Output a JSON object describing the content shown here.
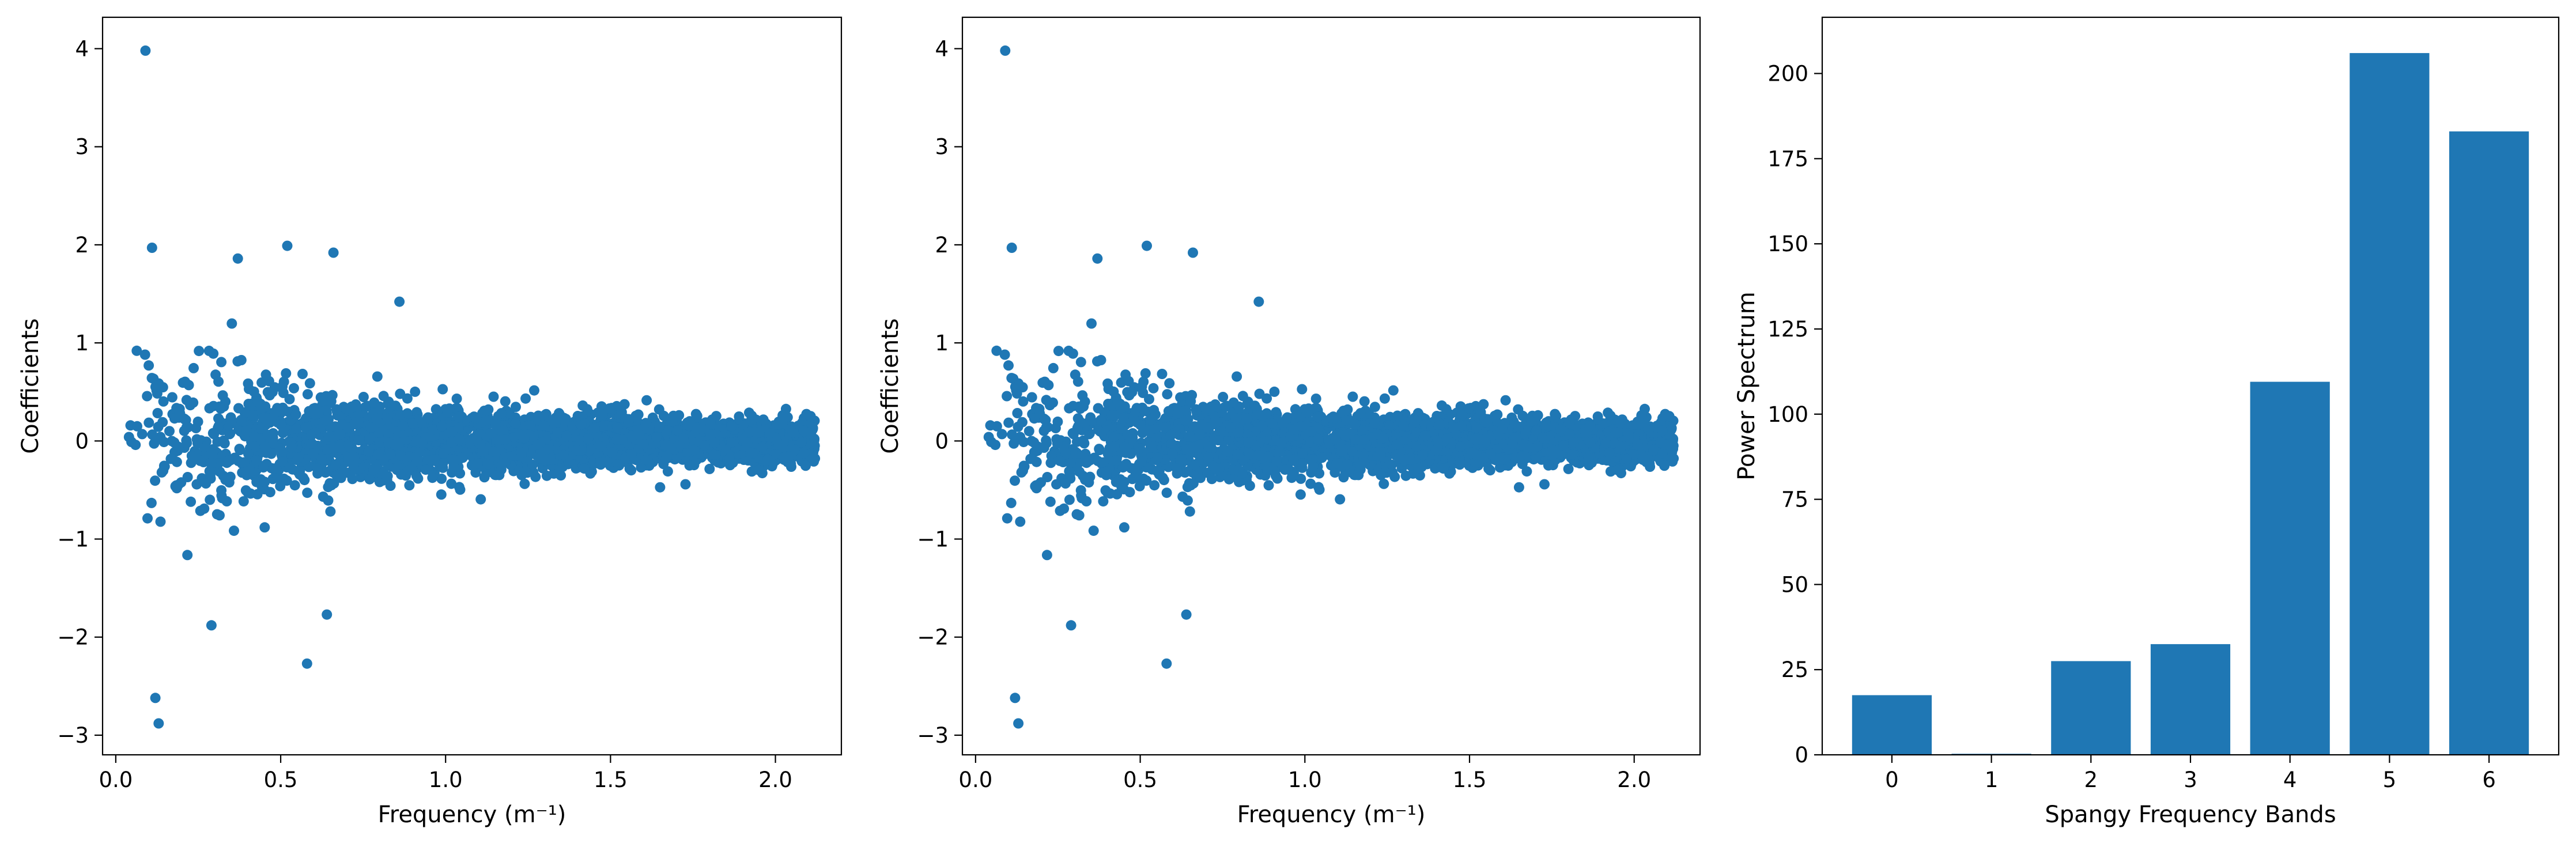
{
  "chart_data": [
    {
      "type": "scatter",
      "title": "",
      "xlabel": "Frequency (m⁻¹)",
      "ylabel": "Coefficients",
      "xlim": [
        -0.04,
        2.2
      ],
      "ylim": [
        -3.2,
        4.32
      ],
      "xticks": [
        0.0,
        0.5,
        1.0,
        1.5,
        2.0
      ],
      "xtick_labels": [
        "0.0",
        "0.5",
        "1.0",
        "1.5",
        "2.0"
      ],
      "yticks": [
        -3,
        -2,
        -1,
        0,
        1,
        2,
        3,
        4
      ],
      "ytick_labels": [
        "−3",
        "−2",
        "−1",
        "0",
        "1",
        "2",
        "3",
        "4"
      ],
      "grid": false,
      "color": "#1f77b4",
      "x_range": [
        0.03,
        2.12
      ],
      "points_note": "dense cloud of coefficients; spread decays with frequency",
      "highlight_points": [
        [
          0.09,
          3.98
        ],
        [
          0.11,
          1.97
        ],
        [
          0.12,
          -2.62
        ],
        [
          0.13,
          -2.88
        ],
        [
          0.58,
          -2.27
        ],
        [
          0.29,
          -1.88
        ],
        [
          0.64,
          -1.77
        ],
        [
          0.52,
          1.99
        ],
        [
          0.66,
          1.92
        ],
        [
          0.37,
          1.86
        ],
        [
          0.86,
          1.42
        ],
        [
          0.1,
          0.77
        ],
        [
          0.04,
          0.04
        ],
        [
          0.06,
          -0.04
        ],
        [
          0.08,
          0.07
        ]
      ]
    },
    {
      "type": "scatter",
      "title": "",
      "xlabel": "Frequency (m⁻¹)",
      "ylabel": "Coefficients",
      "xlim": [
        -0.04,
        2.2
      ],
      "ylim": [
        -3.2,
        4.32
      ],
      "xticks": [
        0.0,
        0.5,
        1.0,
        1.5,
        2.0
      ],
      "xtick_labels": [
        "0.0",
        "0.5",
        "1.0",
        "1.5",
        "2.0"
      ],
      "yticks": [
        -3,
        -2,
        -1,
        0,
        1,
        2,
        3,
        4
      ],
      "ytick_labels": [
        "−3",
        "−2",
        "−1",
        "0",
        "1",
        "2",
        "3",
        "4"
      ],
      "grid": false,
      "color": "#1f77b4",
      "x_range": [
        0.03,
        2.12
      ],
      "points_note": "identical to first panel",
      "highlight_points": [
        [
          0.09,
          3.98
        ],
        [
          0.11,
          1.97
        ],
        [
          0.12,
          -2.62
        ],
        [
          0.13,
          -2.88
        ],
        [
          0.58,
          -2.27
        ],
        [
          0.29,
          -1.88
        ],
        [
          0.64,
          -1.77
        ],
        [
          0.52,
          1.99
        ],
        [
          0.66,
          1.92
        ],
        [
          0.37,
          1.86
        ],
        [
          0.86,
          1.42
        ],
        [
          0.1,
          0.77
        ],
        [
          0.04,
          0.04
        ],
        [
          0.06,
          -0.04
        ],
        [
          0.08,
          0.07
        ]
      ]
    },
    {
      "type": "bar",
      "title": "",
      "xlabel": "Spangy Frequency Bands",
      "ylabel": "Power Spectrum",
      "categories": [
        "0",
        "1",
        "2",
        "3",
        "4",
        "5",
        "6"
      ],
      "values": [
        17.5,
        0.3,
        27.5,
        32.5,
        109.5,
        206,
        183
      ],
      "xlim": [
        -0.7,
        6.7
      ],
      "ylim": [
        0,
        216.5
      ],
      "yticks": [
        0,
        25,
        50,
        75,
        100,
        125,
        150,
        175,
        200
      ],
      "ytick_labels": [
        "0",
        "25",
        "50",
        "75",
        "100",
        "125",
        "150",
        "175",
        "200"
      ],
      "grid": false,
      "color": "#1f77b4"
    }
  ]
}
